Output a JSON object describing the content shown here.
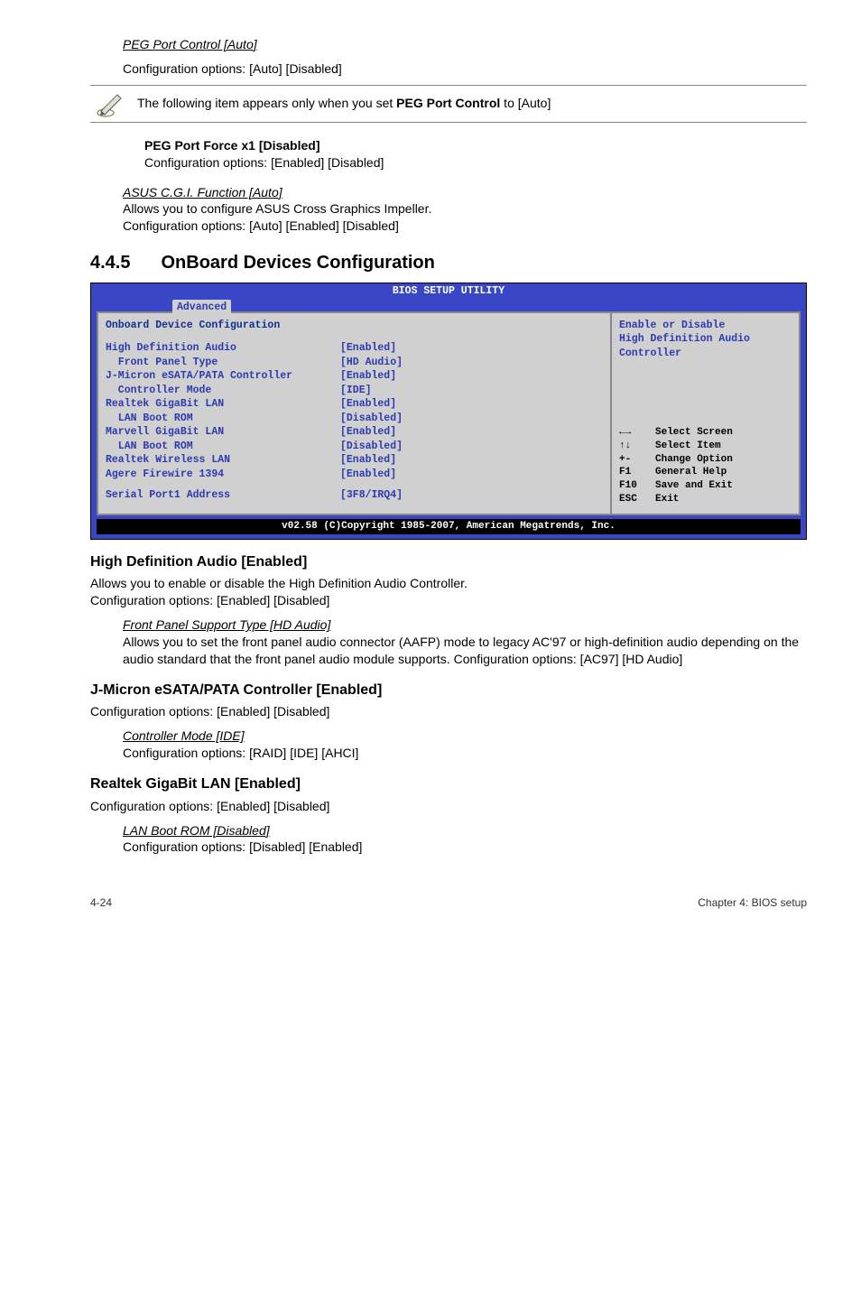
{
  "top": {
    "peg_title": "PEG Port Control [Auto]",
    "peg_text": "Configuration options: [Auto] [Disabled]",
    "note_prefix": "The following item appears only when you set ",
    "note_bold": "PEG Port Control",
    "note_suffix": " to [Auto]",
    "force_title": "PEG Port Force x1 [Disabled]",
    "force_text": "Configuration options: [Enabled] [Disabled]",
    "cgi_title": "ASUS C.G.I. Function [Auto]",
    "cgi_line1": "Allows you to configure ASUS Cross Graphics Impeller.",
    "cgi_line2": "Configuration options: [Auto] [Enabled] [Disabled]"
  },
  "section": {
    "num": "4.4.5",
    "title": "OnBoard Devices Configuration"
  },
  "bios": {
    "title": "BIOS SETUP UTILITY",
    "tab": "Advanced",
    "panel_heading": "Onboard Device Configuration",
    "rows": [
      {
        "label": "High Definition Audio",
        "value": "[Enabled]",
        "indent": 0
      },
      {
        "label": "Front Panel Type",
        "value": "[HD Audio]",
        "indent": 1
      },
      {
        "label": "J-Micron eSATA/PATA Controller",
        "value": "[Enabled]",
        "indent": 0
      },
      {
        "label": "Controller Mode",
        "value": "[IDE]",
        "indent": 1
      },
      {
        "label": "Realtek GigaBit LAN",
        "value": "[Enabled]",
        "indent": 0
      },
      {
        "label": "LAN Boot ROM",
        "value": "[Disabled]",
        "indent": 1
      },
      {
        "label": "Marvell GigaBit LAN",
        "value": "[Enabled]",
        "indent": 0
      },
      {
        "label": "LAN Boot ROM",
        "value": "[Disabled]",
        "indent": 1
      },
      {
        "label": "Realtek Wireless LAN",
        "value": "[Enabled]",
        "indent": 0
      },
      {
        "label": "Agere Firewire 1394",
        "value": "[Enabled]",
        "indent": 0
      }
    ],
    "serial_label": "Serial Port1 Address",
    "serial_value": "[3F8/IRQ4]",
    "help1": "Enable or Disable",
    "help2": "High Definition Audio",
    "help3": "Controller",
    "keys": [
      {
        "k": "←→",
        "t": "Select Screen"
      },
      {
        "k": "↑↓",
        "t": "Select Item"
      },
      {
        "k": "+-",
        "t": "Change Option"
      },
      {
        "k": "F1",
        "t": "General Help"
      },
      {
        "k": "F10",
        "t": "Save and Exit"
      },
      {
        "k": "ESC",
        "t": "Exit"
      }
    ],
    "footer": "v02.58 (C)Copyright 1985-2007, American Megatrends, Inc."
  },
  "hda": {
    "title": "High Definition Audio [Enabled]",
    "line1": "Allows you to enable or disable the High Definition Audio Controller.",
    "line2": "Configuration options: [Enabled] [Disabled]",
    "fp_title": "Front Panel Support Type [HD Audio]",
    "fp_body": "Allows you to set the front panel audio connector (AAFP) mode to legacy AC'97 or high-definition audio depending on the audio standard that the front panel audio module supports. Configuration options: [AC97] [HD Audio]"
  },
  "jmicron": {
    "title": "J-Micron eSATA/PATA Controller [Enabled]",
    "line": "Configuration options: [Enabled] [Disabled]",
    "cm_title": "Controller Mode [IDE]",
    "cm_body": "Configuration options: [RAID] [IDE] [AHCI]"
  },
  "realtek": {
    "title": "Realtek GigaBit LAN [Enabled]",
    "line": "Configuration options: [Enabled] [Disabled]",
    "rom_title": "LAN Boot ROM [Disabled]",
    "rom_body": "Configuration options: [Disabled] [Enabled]"
  },
  "footer": {
    "left": "4-24",
    "right": "Chapter 4: BIOS setup"
  },
  "colors": {
    "bios_bg": "#3947c6",
    "panel_bg": "#d0d0d0",
    "bios_text": "#2b3ab0",
    "key_text": "#000000"
  }
}
